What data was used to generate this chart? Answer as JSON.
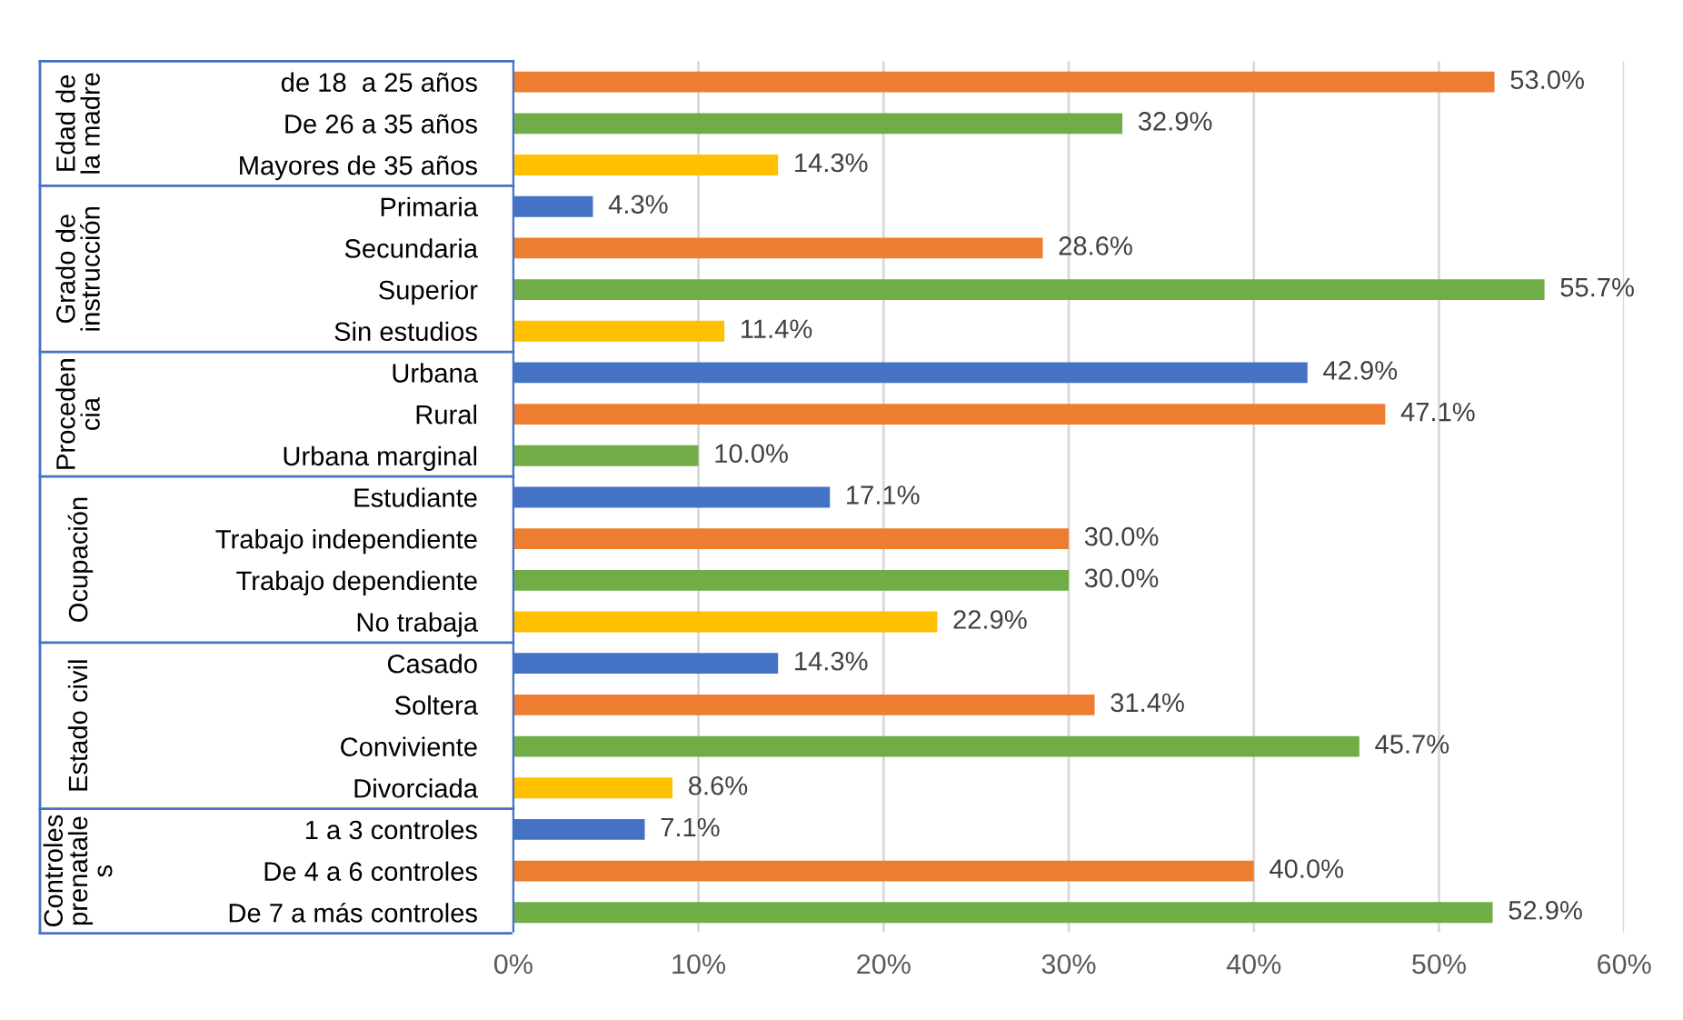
{
  "chart_data": {
    "type": "bar",
    "orientation": "horizontal",
    "categories": [
      "de 18  a 25 años",
      "De 26 a 35 años",
      "Mayores de 35 años",
      "Primaria",
      "Secundaria",
      "Superior",
      "Sin estudios",
      "Urbana",
      "Rural",
      "Urbana marginal",
      "Estudiante",
      "Trabajo independiente",
      "Trabajo dependiente",
      "No trabaja",
      "Casado",
      "Soltera",
      "Conviviente",
      "Divorciada",
      "1 a 3 controles",
      "De 4 a 6 controles",
      "De 7 a más controles"
    ],
    "values": [
      53.0,
      32.9,
      14.3,
      4.3,
      28.6,
      55.7,
      11.4,
      42.9,
      47.1,
      10.0,
      17.1,
      30.0,
      30.0,
      22.9,
      14.3,
      31.4,
      45.7,
      8.6,
      7.1,
      40.0,
      52.9
    ],
    "value_labels": [
      "53.0%",
      "32.9%",
      "14.3%",
      "4.3%",
      "28.6%",
      "55.7%",
      "11.4%",
      "42.9%",
      "47.1%",
      "10.0%",
      "17.1%",
      "30.0%",
      "30.0%",
      "22.9%",
      "14.3%",
      "31.4%",
      "45.7%",
      "8.6%",
      "7.1%",
      "40.0%",
      "52.9%"
    ],
    "colors": [
      "#ed7d31",
      "#70ad47",
      "#ffc000",
      "#4472c4",
      "#ed7d31",
      "#70ad47",
      "#ffc000",
      "#4472c4",
      "#ed7d31",
      "#70ad47",
      "#4472c4",
      "#ed7d31",
      "#70ad47",
      "#ffc000",
      "#4472c4",
      "#ed7d31",
      "#70ad47",
      "#ffc000",
      "#4472c4",
      "#ed7d31",
      "#70ad47"
    ],
    "xlim": [
      0,
      60
    ],
    "xticks": [
      {
        "value": 0,
        "label": "0%"
      },
      {
        "value": 10,
        "label": "10%"
      },
      {
        "value": 20,
        "label": "20%"
      },
      {
        "value": 30,
        "label": "30%"
      },
      {
        "value": 40,
        "label": "40%"
      },
      {
        "value": 50,
        "label": "50%"
      },
      {
        "value": 60,
        "label": "60%"
      }
    ],
    "grid": "x",
    "annotations": [
      "Edad de\nla madre",
      "Grado de\ninstrucción",
      "Proceden\ncia",
      "Ocupación",
      "Estado civil",
      "Controles\nprenatale\ns"
    ]
  }
}
